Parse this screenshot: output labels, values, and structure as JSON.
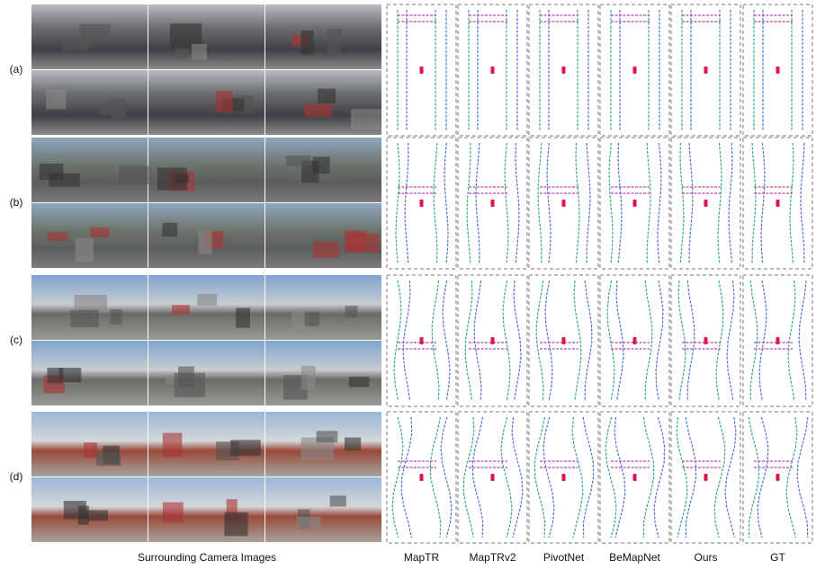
{
  "rows": [
    {
      "label": "(a)"
    },
    {
      "label": "(b)"
    },
    {
      "label": "(c)"
    },
    {
      "label": "(d)"
    }
  ],
  "camera_caption": "Surrounding Camera Images",
  "columns": [
    "MapTR",
    "MapTRv2",
    "PivotNet",
    "BeMapNet",
    "Ours",
    "GT"
  ]
}
